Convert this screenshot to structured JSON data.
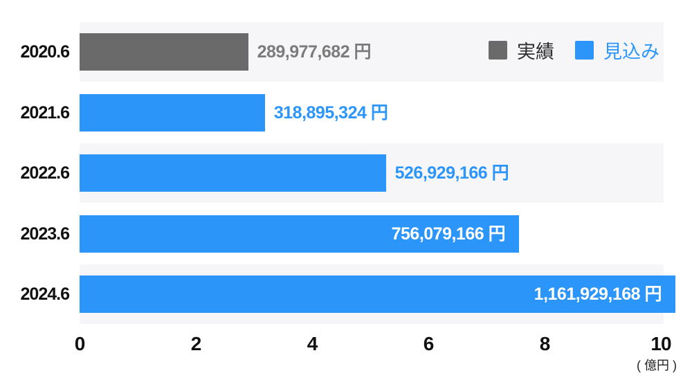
{
  "chart_data": {
    "type": "bar",
    "orientation": "horizontal",
    "title": "",
    "categories": [
      "2020.6",
      "2021.6",
      "2022.6",
      "2023.6",
      "2024.6"
    ],
    "values_yen": [
      289977682,
      318895324,
      526929166,
      756079166,
      1161929168
    ],
    "value_labels": [
      "289,977,682 円",
      "318,895,324 円",
      "526,929,166 円",
      "756,079,166 円",
      "1,161,929,168 円"
    ],
    "value_label_placement": [
      "outside",
      "outside",
      "outside",
      "inside",
      "inside"
    ],
    "series_membership": [
      "実績",
      "見込み",
      "見込み",
      "見込み",
      "見込み"
    ],
    "x_ticks": [
      "0",
      "2",
      "4",
      "6",
      "8",
      "10"
    ],
    "xlim_oku": [
      0,
      10
    ],
    "axis_unit_label": "( 億円 )",
    "grid": false,
    "row_stripes": true,
    "legend_position": "top-right",
    "legend": [
      {
        "id": "actual",
        "label": "実績",
        "swatch_color": "#6a6a6a",
        "text_color": "#2b2b2b"
      },
      {
        "id": "forecast",
        "label": "見込み",
        "swatch_color": "#2b95fa",
        "text_color": "#2b95fa"
      }
    ],
    "colors": {
      "bar_actual": "#6a6a6a",
      "bar_forecast": "#2b95fa",
      "value_outside_actual": "#7b7b7b",
      "value_outside_forecast": "#2b95fa",
      "value_inside": "#ffffff",
      "row_stripe": "#f6f6f8",
      "axis_text": "#111111",
      "background": "#ffffff"
    }
  }
}
